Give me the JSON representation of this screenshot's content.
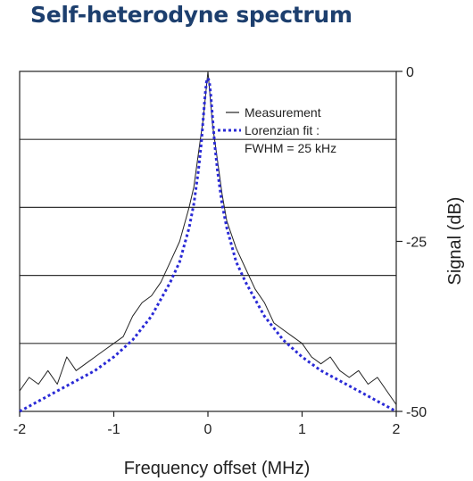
{
  "chart_data": {
    "type": "line",
    "title": "Self-heterodyne spectrum",
    "xlabel": "Frequency offset (MHz)",
    "ylabel": "Signal (dB)",
    "xlim": [
      -2,
      2
    ],
    "ylim": [
      -50,
      0
    ],
    "xticks": [
      "-2",
      "-1",
      "0",
      "1",
      "2"
    ],
    "yticks": [
      "0",
      "-25",
      "-50"
    ],
    "grid": "horizontal",
    "legend_position": "top-center",
    "legend": [
      "Measurement",
      "Lorenzian fit :",
      "FWHM = 25 kHz"
    ],
    "series": [
      {
        "name": "Measurement",
        "color": "#222222",
        "style": "solid",
        "x": [
          -2.0,
          -1.9,
          -1.8,
          -1.7,
          -1.6,
          -1.5,
          -1.4,
          -1.3,
          -1.2,
          -1.1,
          -1.0,
          -0.9,
          -0.8,
          -0.7,
          -0.6,
          -0.5,
          -0.4,
          -0.3,
          -0.2,
          -0.15,
          -0.1,
          -0.05,
          0.0,
          0.05,
          0.1,
          0.15,
          0.2,
          0.3,
          0.4,
          0.5,
          0.6,
          0.7,
          0.8,
          0.9,
          1.0,
          1.1,
          1.2,
          1.3,
          1.4,
          1.5,
          1.6,
          1.7,
          1.8,
          1.9,
          2.0
        ],
        "values": [
          -47,
          -45,
          -46,
          -44,
          -46,
          -42,
          -44,
          -43,
          -42,
          -41,
          -40,
          -39,
          -36,
          -34,
          -33,
          -31,
          -28,
          -25,
          -20,
          -17,
          -12,
          -7,
          0,
          -8,
          -13,
          -18,
          -22,
          -26,
          -29,
          -32,
          -34,
          -37,
          -38,
          -39,
          -40,
          -42,
          -43,
          -42,
          -44,
          -45,
          -44,
          -46,
          -45,
          -47,
          -49
        ]
      },
      {
        "name": "Lorenzian fit :",
        "color": "#2a2ad6",
        "style": "dotted",
        "x": [
          -2.0,
          -1.6,
          -1.2,
          -1.0,
          -0.8,
          -0.6,
          -0.4,
          -0.3,
          -0.2,
          -0.15,
          -0.1,
          -0.07,
          -0.05,
          -0.03,
          -0.015,
          0.0,
          0.015,
          0.03,
          0.05,
          0.07,
          0.1,
          0.15,
          0.2,
          0.3,
          0.4,
          0.6,
          0.8,
          1.0,
          1.2,
          1.6,
          2.0
        ],
        "values": [
          -50,
          -47,
          -44,
          -42,
          -39.5,
          -36,
          -31,
          -28,
          -23,
          -19.5,
          -14.5,
          -10.5,
          -7,
          -3.5,
          -1.5,
          -1,
          -1.5,
          -3.5,
          -7,
          -10.5,
          -14.5,
          -19.5,
          -23,
          -28,
          -31,
          -36,
          -39.5,
          -42,
          -44,
          -47,
          -50
        ]
      }
    ]
  }
}
